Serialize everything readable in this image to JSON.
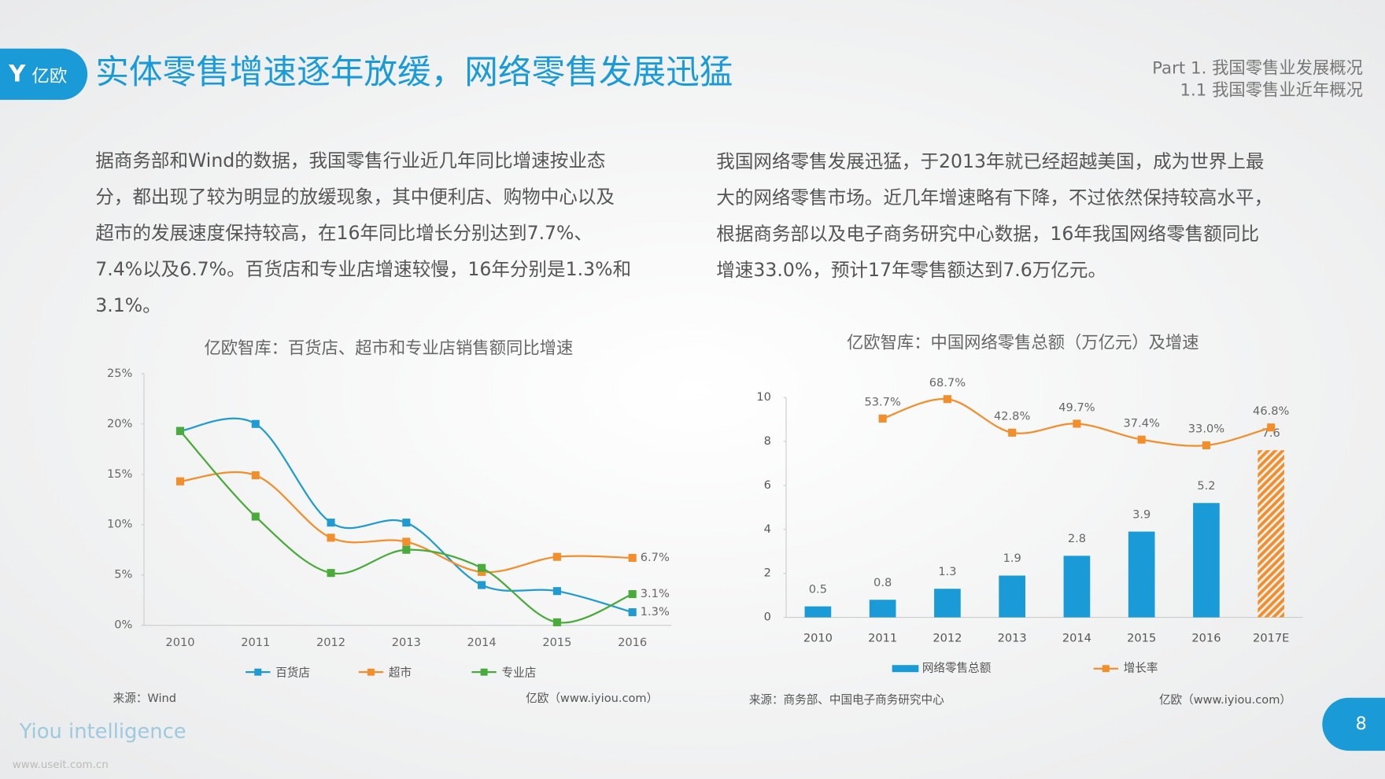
{
  "header": {
    "logo": "亿欧",
    "title": "实体零售增速逐年放缓，网络零售发展迅猛",
    "section": "Part 1. 我国零售业发展概况",
    "subsection": "1.1 我国零售业近年概况"
  },
  "paragraphs": [
    [
      "据商务部和Wind的数据，我国零售行业近几年同比增速按业态",
      "分，都出现了较为明显的放缓现象，其中便利店、购物中心以及",
      "超市的发展速度保持较高，在16年同比增长分别达到7.7%、",
      "7.4%以及6.7%。百货店和专业店增速较慢，16年分别是1.3%和",
      "3.1%。"
    ],
    [
      "我国网络零售发展迅猛，于2013年就已经超越美国，成为世界上最",
      "大的网络零售市场。近几年增速略有下降，不过依然保持较高水平，",
      "根据商务部以及电子商务研究中心数据，16年我国网络零售额同比",
      "增速33.0%，预计17年零售额达到7.6万亿元。"
    ]
  ],
  "chart_data": [
    {
      "type": "line",
      "title": "亿欧智库：百货店、超市和专业店销售额同比增速",
      "categories": [
        "2010",
        "2011",
        "2012",
        "2013",
        "2014",
        "2015",
        "2016"
      ],
      "series": [
        {
          "name": "百货店",
          "color": "#1f9bd1",
          "values": [
            19.3,
            20,
            10.2,
            10.2,
            4,
            3.4,
            1.3
          ],
          "value_labels": [
            null,
            null,
            null,
            null,
            null,
            null,
            "1.3%"
          ]
        },
        {
          "name": "超市",
          "color": "#f28e2b",
          "values": [
            14.3,
            14.9,
            8.7,
            8.3,
            5.3,
            6.8,
            6.7
          ],
          "value_labels": [
            null,
            null,
            null,
            null,
            null,
            null,
            "6.7%"
          ]
        },
        {
          "name": "专业店",
          "color": "#4aab3c",
          "values": [
            19.3,
            10.8,
            5.2,
            7.5,
            5.7,
            0.3,
            3.1
          ],
          "value_labels": [
            null,
            null,
            null,
            null,
            null,
            null,
            "3.1%"
          ]
        }
      ],
      "ylim": [
        0,
        25
      ],
      "yticks": [
        {
          "value": 0,
          "label": "0%"
        },
        {
          "value": 5,
          "label": "5%"
        },
        {
          "value": 10,
          "label": "10%"
        },
        {
          "value": 15,
          "label": "15%"
        },
        {
          "value": 20,
          "label": "20%"
        },
        {
          "value": 25,
          "label": "25%"
        }
      ],
      "source": "来源：Wind",
      "credit": "亿欧（www.iyiou.com）"
    },
    {
      "type": "bar",
      "title": "亿欧智库：中国网络零售总额（万亿元）及增速",
      "categories": [
        "2010",
        "2011",
        "2012",
        "2013",
        "2014",
        "2015",
        "2016",
        "2017E"
      ],
      "series": [
        {
          "name": "网络零售总额",
          "color": "#1a9ad6",
          "values": [
            0.5,
            0.8,
            1.3,
            1.9,
            2.8,
            3.9,
            5.2,
            7.6
          ],
          "patterns": [
            "solid",
            "solid",
            "solid",
            "solid",
            "solid",
            "solid",
            "solid",
            "hatch"
          ],
          "hatch_color": "#f28e2b"
        },
        {
          "name": "增长率",
          "color": "#f28e2b",
          "axis": "y2",
          "values": [
            null,
            53.7,
            68.7,
            42.8,
            49.7,
            37.4,
            33.0,
            46.8
          ],
          "value_labels": [
            null,
            "53.7%",
            "68.7%",
            "42.8%",
            "49.7%",
            "37.4%",
            "33.0%",
            "46.8%"
          ]
        }
      ],
      "ylim": [
        0,
        10
      ],
      "yticks": [
        0,
        2,
        4,
        6,
        8,
        10
      ],
      "y2lim": [
        -100,
        70
      ],
      "source": "来源：商务部、中国电子商务研究中心",
      "credit": "亿欧（www.iyiou.com）"
    }
  ],
  "footer": {
    "brand": "Yiou intelligence",
    "page": 8,
    "watermark": "www.useit.com.cn"
  }
}
